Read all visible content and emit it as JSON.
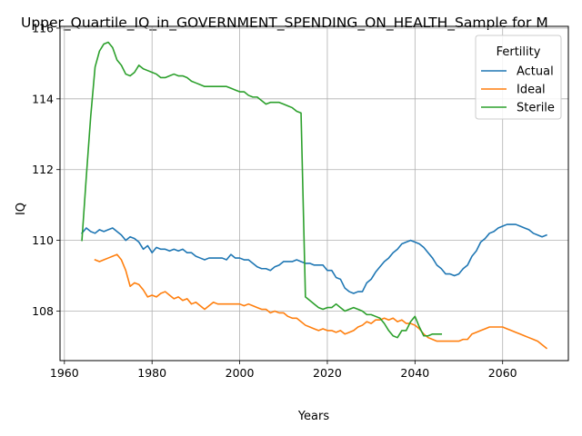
{
  "chart_data": {
    "type": "line",
    "title": "Upper_Quartile_IQ_in_GOVERNMENT_SPENDING_ON_HEALTH_Sample for M",
    "xlabel": "Years",
    "ylabel": "IQ",
    "xlim": [
      1959,
      2075
    ],
    "ylim": [
      106.6,
      116.05
    ],
    "xticks": [
      1960,
      1980,
      2000,
      2020,
      2040,
      2060
    ],
    "yticks": [
      108,
      110,
      112,
      114,
      116
    ],
    "grid": true,
    "legend": {
      "title": "Fertility",
      "placement": "top-right"
    },
    "series": [
      {
        "name": "Actual",
        "color": "#1f77b4",
        "x": [
          1964,
          1965,
          1966,
          1967,
          1968,
          1969,
          1970,
          1971,
          1972,
          1973,
          1974,
          1975,
          1976,
          1977,
          1978,
          1979,
          1980,
          1981,
          1982,
          1983,
          1984,
          1985,
          1986,
          1987,
          1988,
          1989,
          1990,
          1991,
          1992,
          1993,
          1994,
          1995,
          1996,
          1997,
          1998,
          1999,
          2000,
          2001,
          2002,
          2003,
          2004,
          2005,
          2006,
          2007,
          2008,
          2009,
          2010,
          2011,
          2012,
          2013,
          2014,
          2015,
          2016,
          2017,
          2018,
          2019,
          2020,
          2021,
          2022,
          2023,
          2024,
          2025,
          2026,
          2027,
          2028,
          2029,
          2030,
          2031,
          2032,
          2033,
          2034,
          2035,
          2036,
          2037,
          2038,
          2039,
          2040,
          2041,
          2042,
          2043,
          2044,
          2045,
          2046,
          2047,
          2048,
          2049,
          2050,
          2051,
          2052,
          2053,
          2054,
          2055,
          2056,
          2057,
          2058,
          2059,
          2060,
          2061,
          2062,
          2063,
          2064,
          2065,
          2066,
          2067,
          2068,
          2069,
          2070
        ],
        "y": [
          110.2,
          110.35,
          110.25,
          110.2,
          110.3,
          110.25,
          110.3,
          110.35,
          110.25,
          110.15,
          110.0,
          110.1,
          110.05,
          109.95,
          109.75,
          109.85,
          109.65,
          109.8,
          109.75,
          109.75,
          109.7,
          109.75,
          109.7,
          109.75,
          109.65,
          109.65,
          109.55,
          109.5,
          109.45,
          109.5,
          109.5,
          109.5,
          109.5,
          109.45,
          109.6,
          109.5,
          109.5,
          109.45,
          109.45,
          109.35,
          109.25,
          109.2,
          109.2,
          109.15,
          109.25,
          109.3,
          109.4,
          109.4,
          109.4,
          109.45,
          109.4,
          109.35,
          109.35,
          109.3,
          109.3,
          109.3,
          109.15,
          109.15,
          108.95,
          108.9,
          108.65,
          108.55,
          108.5,
          108.55,
          108.55,
          108.8,
          108.9,
          109.1,
          109.25,
          109.4,
          109.5,
          109.65,
          109.75,
          109.9,
          109.95,
          110.0,
          109.95,
          109.9,
          109.8,
          109.65,
          109.5,
          109.3,
          109.2,
          109.05,
          109.05,
          109.0,
          109.05,
          109.2,
          109.3,
          109.55,
          109.7,
          109.95,
          110.05,
          110.2,
          110.25,
          110.35,
          110.4,
          110.45,
          110.45,
          110.45,
          110.4,
          110.35,
          110.3,
          110.2,
          110.15,
          110.1,
          110.15
        ]
      },
      {
        "name": "Ideal",
        "color": "#ff7f0e",
        "x": [
          1967,
          1968,
          1969,
          1970,
          1971,
          1972,
          1973,
          1974,
          1975,
          1976,
          1977,
          1978,
          1979,
          1980,
          1981,
          1982,
          1983,
          1984,
          1985,
          1986,
          1987,
          1988,
          1989,
          1990,
          1991,
          1992,
          1993,
          1994,
          1995,
          1996,
          1997,
          1998,
          1999,
          2000,
          2001,
          2002,
          2003,
          2004,
          2005,
          2006,
          2007,
          2008,
          2009,
          2010,
          2011,
          2012,
          2013,
          2014,
          2015,
          2016,
          2017,
          2018,
          2019,
          2020,
          2021,
          2022,
          2023,
          2024,
          2025,
          2026,
          2027,
          2028,
          2029,
          2030,
          2031,
          2032,
          2033,
          2034,
          2035,
          2036,
          2037,
          2038,
          2039,
          2040,
          2041,
          2042,
          2043,
          2044,
          2045,
          2046,
          2047,
          2048,
          2049,
          2050,
          2051,
          2052,
          2053,
          2054,
          2055,
          2056,
          2057,
          2058,
          2059,
          2060,
          2061,
          2062,
          2063,
          2064,
          2065,
          2066,
          2067,
          2068,
          2069,
          2070
        ],
        "y": [
          109.45,
          109.4,
          109.45,
          109.5,
          109.55,
          109.6,
          109.45,
          109.15,
          108.7,
          108.8,
          108.75,
          108.6,
          108.4,
          108.45,
          108.4,
          108.5,
          108.55,
          108.45,
          108.35,
          108.4,
          108.3,
          108.35,
          108.2,
          108.25,
          108.15,
          108.05,
          108.15,
          108.25,
          108.2,
          108.2,
          108.2,
          108.2,
          108.2,
          108.2,
          108.15,
          108.2,
          108.15,
          108.1,
          108.05,
          108.05,
          107.95,
          108.0,
          107.95,
          107.95,
          107.85,
          107.8,
          107.8,
          107.7,
          107.6,
          107.55,
          107.5,
          107.45,
          107.5,
          107.45,
          107.45,
          107.4,
          107.45,
          107.35,
          107.4,
          107.45,
          107.55,
          107.6,
          107.7,
          107.65,
          107.75,
          107.75,
          107.8,
          107.75,
          107.8,
          107.7,
          107.75,
          107.65,
          107.65,
          107.6,
          107.5,
          107.35,
          107.25,
          107.2,
          107.15,
          107.15,
          107.15,
          107.15,
          107.15,
          107.15,
          107.2,
          107.2,
          107.35,
          107.4,
          107.45,
          107.5,
          107.55,
          107.55,
          107.55,
          107.55,
          107.5,
          107.45,
          107.4,
          107.35,
          107.3,
          107.25,
          107.2,
          107.15,
          107.05,
          106.95
        ]
      },
      {
        "name": "Sterile",
        "color": "#2ca02c",
        "x": [
          1964,
          1965,
          1966,
          1967,
          1968,
          1969,
          1970,
          1971,
          1972,
          1973,
          1974,
          1975,
          1976,
          1977,
          1978,
          1979,
          1980,
          1981,
          1982,
          1983,
          1984,
          1985,
          1986,
          1987,
          1988,
          1989,
          1990,
          1991,
          1992,
          1993,
          1994,
          1995,
          1996,
          1997,
          1998,
          1999,
          2000,
          2001,
          2002,
          2003,
          2004,
          2005,
          2006,
          2007,
          2008,
          2009,
          2010,
          2011,
          2012,
          2013,
          2014,
          2015,
          2016,
          2017,
          2018,
          2019,
          2020,
          2021,
          2022,
          2023,
          2024,
          2025,
          2026,
          2027,
          2028,
          2029,
          2030,
          2031,
          2032,
          2033,
          2034,
          2035,
          2036,
          2037,
          2038,
          2039,
          2040,
          2041,
          2042,
          2043,
          2044,
          2045,
          2046
        ],
        "y": [
          110.0,
          111.8,
          113.5,
          114.9,
          115.35,
          115.55,
          115.6,
          115.45,
          115.1,
          114.95,
          114.7,
          114.65,
          114.75,
          114.95,
          114.85,
          114.8,
          114.75,
          114.7,
          114.6,
          114.6,
          114.65,
          114.7,
          114.65,
          114.65,
          114.6,
          114.5,
          114.45,
          114.4,
          114.35,
          114.35,
          114.35,
          114.35,
          114.35,
          114.35,
          114.3,
          114.25,
          114.2,
          114.2,
          114.1,
          114.05,
          114.05,
          113.95,
          113.85,
          113.9,
          113.9,
          113.9,
          113.85,
          113.8,
          113.75,
          113.65,
          113.6,
          108.4,
          108.3,
          108.2,
          108.1,
          108.05,
          108.1,
          108.1,
          108.2,
          108.1,
          108.0,
          108.05,
          108.1,
          108.05,
          108.0,
          107.9,
          107.9,
          107.85,
          107.8,
          107.65,
          107.45,
          107.3,
          107.25,
          107.45,
          107.45,
          107.7,
          107.85,
          107.55,
          107.3,
          107.3,
          107.35,
          107.35,
          107.35
        ]
      }
    ]
  }
}
